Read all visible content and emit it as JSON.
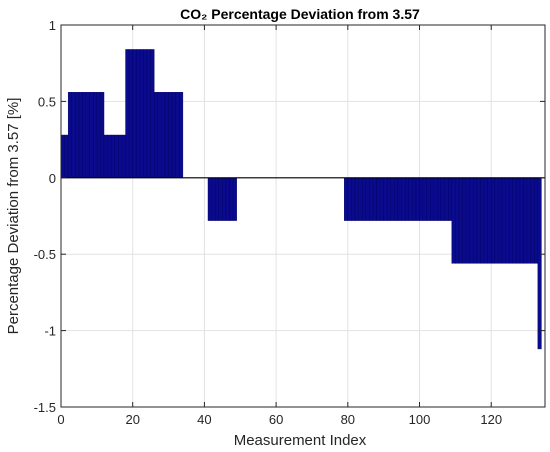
{
  "chart_data": {
    "type": "bar",
    "title": "CO₂ Percentage Deviation from 3.57",
    "xlabel": "Measurement Index",
    "ylabel": "Percentage Deviation from 3.57 [%]",
    "xlim": [
      0,
      135
    ],
    "ylim": [
      -1.5,
      1
    ],
    "xticks": [
      0,
      20,
      40,
      60,
      80,
      100,
      120
    ],
    "yticks": [
      -1.5,
      -1,
      -0.5,
      0,
      0.5,
      1
    ],
    "xtick_labels": [
      "0",
      "20",
      "40",
      "60",
      "80",
      "100",
      "120"
    ],
    "ytick_labels": [
      "-1.5",
      "-1",
      "-0.5",
      "0",
      "0.5",
      "1"
    ],
    "grid": true,
    "baseline": 0,
    "x_start": 0,
    "bin_width": 1,
    "values": [
      0.28,
      0.28,
      0.56,
      0.56,
      0.56,
      0.56,
      0.56,
      0.56,
      0.56,
      0.56,
      0.56,
      0.56,
      0.28,
      0.28,
      0.28,
      0.28,
      0.28,
      0.28,
      0.84,
      0.84,
      0.84,
      0.84,
      0.84,
      0.84,
      0.84,
      0.84,
      0.56,
      0.56,
      0.56,
      0.56,
      0.56,
      0.56,
      0.56,
      0.56,
      0,
      0,
      0,
      0,
      0,
      0,
      0,
      -0.28,
      -0.28,
      -0.28,
      -0.28,
      -0.28,
      -0.28,
      -0.28,
      -0.28,
      0,
      0,
      0,
      0,
      0,
      0,
      0,
      0,
      0,
      0,
      0,
      0,
      0,
      0,
      0,
      0,
      0,
      0,
      0,
      0,
      0,
      0,
      0,
      0,
      0,
      0,
      0,
      0,
      0,
      0,
      -0.28,
      -0.28,
      -0.28,
      -0.28,
      -0.28,
      -0.28,
      -0.28,
      -0.28,
      -0.28,
      -0.28,
      -0.28,
      -0.28,
      -0.28,
      -0.28,
      -0.28,
      -0.28,
      -0.28,
      -0.28,
      -0.28,
      -0.28,
      -0.28,
      -0.28,
      -0.28,
      -0.28,
      -0.28,
      -0.28,
      -0.28,
      -0.28,
      -0.28,
      -0.28,
      -0.56,
      -0.56,
      -0.56,
      -0.56,
      -0.56,
      -0.56,
      -0.56,
      -0.56,
      -0.56,
      -0.56,
      -0.56,
      -0.56,
      -0.56,
      -0.56,
      -0.56,
      -0.56,
      -0.56,
      -0.56,
      -0.56,
      -0.56,
      -0.56,
      -0.56,
      -0.56,
      -0.56,
      -1.12
    ],
    "colors": {
      "bar_fill": "#0a0a8c",
      "bar_edge": "#000066",
      "grid": "#e2e2e2",
      "axis": "#262626"
    }
  }
}
